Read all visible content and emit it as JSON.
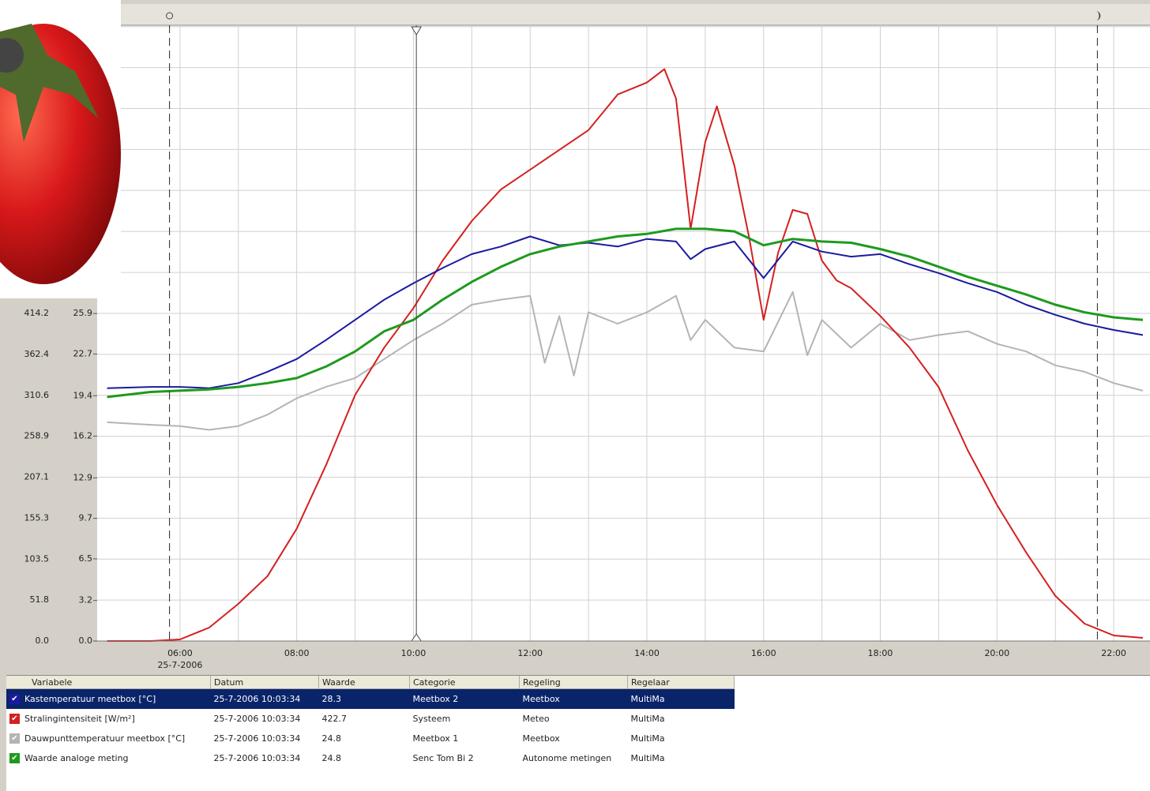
{
  "chart_data": {
    "type": "line",
    "xlim": [
      4.58,
      22.5
    ],
    "xticks": [
      {
        "value": 6,
        "label": "06:00"
      },
      {
        "value": 8,
        "label": "08:00"
      },
      {
        "value": 10,
        "label": "10:00"
      },
      {
        "value": 12,
        "label": "12:00"
      },
      {
        "value": 14,
        "label": "14:00"
      },
      {
        "value": 16,
        "label": "16:00"
      },
      {
        "value": 18,
        "label": "18:00"
      },
      {
        "value": 20,
        "label": "20:00"
      },
      {
        "value": 22,
        "label": "22:00"
      }
    ],
    "xgrid": [
      7,
      9,
      11,
      13,
      15,
      17,
      19,
      21
    ],
    "x_date_label": "25-7-2006",
    "ylim": [
      0,
      778.5
    ],
    "yticks": [
      {
        "value": 0,
        "label": "0.0"
      },
      51.8,
      103.5,
      155.3,
      207.1,
      258.9,
      310.6,
      362.4,
      414.2
    ],
    "ygrid": [
      466.0,
      517.8,
      569.6,
      621.4,
      673.2,
      725.0,
      776.7
    ],
    "y2lim": [
      0,
      48.7
    ],
    "y2ticks": [
      {
        "value": 0,
        "label": "0.0"
      },
      3.2,
      6.5,
      9.7,
      12.9,
      16.2,
      19.4,
      22.7,
      25.9
    ],
    "grid": true,
    "sunrise_x": 5.82,
    "cursor_x": 10.05,
    "sunset_x": 21.72,
    "series": [
      {
        "name": "Kastemperatuur meetbox [°C]",
        "color": "#1a1aa0",
        "axis": "y2",
        "x": [
          4.75,
          5.5,
          6,
          6.5,
          7,
          7.5,
          8,
          8.5,
          9,
          9.5,
          10,
          10.5,
          11,
          11.5,
          12,
          12.5,
          13,
          13.5,
          14,
          14.5,
          14.75,
          15,
          15.5,
          16,
          16.5,
          17,
          17.5,
          18,
          18.5,
          19,
          19.5,
          20,
          20.5,
          21,
          21.5,
          22,
          22.5
        ],
        "values": [
          20.0,
          20.1,
          20.1,
          20.0,
          20.4,
          21.3,
          22.3,
          23.8,
          25.4,
          27.0,
          28.3,
          29.5,
          30.6,
          31.2,
          32.0,
          31.3,
          31.5,
          31.2,
          31.8,
          31.6,
          30.2,
          31.0,
          31.6,
          28.7,
          31.6,
          30.8,
          30.4,
          30.6,
          29.8,
          29.1,
          28.3,
          27.6,
          26.6,
          25.8,
          25.1,
          24.6,
          24.2
        ]
      },
      {
        "name": "Stralingintensiteit [W/m²]",
        "color": "#d42020",
        "axis": "y",
        "x": [
          4.75,
          5.5,
          6,
          6.5,
          7,
          7.5,
          8,
          8.5,
          9,
          9.5,
          10,
          10.5,
          11,
          11.5,
          12,
          12.5,
          13,
          13.5,
          14,
          14.3,
          14.5,
          14.75,
          15,
          15.2,
          15.5,
          15.75,
          16,
          16.25,
          16.5,
          16.75,
          17,
          17.25,
          17.5,
          18,
          18.5,
          19,
          19.5,
          20,
          20.5,
          21,
          21.5,
          22,
          22.5
        ],
        "values": [
          0,
          0,
          2,
          17,
          47,
          82,
          142,
          222,
          311,
          371,
          421,
          481,
          531,
          571,
          596,
          621,
          646,
          691,
          706,
          723,
          686,
          521,
          631,
          676,
          601,
          511,
          406,
          491,
          545,
          540,
          481,
          456,
          446,
          411,
          371,
          321,
          241,
          172,
          112,
          57,
          22,
          7,
          4
        ]
      },
      {
        "name": "Dauwpunttemperatuur meetbox [°C]",
        "color": "#b4b4b4",
        "axis": "y2",
        "x": [
          4.75,
          5.5,
          6,
          6.5,
          7,
          7.5,
          8,
          8.5,
          9,
          9.5,
          10,
          10.5,
          11,
          11.5,
          12,
          12.25,
          12.5,
          12.75,
          13,
          13.5,
          14,
          14.5,
          14.75,
          15,
          15.5,
          16,
          16.5,
          16.75,
          17,
          17.5,
          18,
          18.5,
          19,
          19.5,
          20,
          20.5,
          21,
          21.5,
          22,
          22.5
        ],
        "values": [
          17.3,
          17.1,
          17.0,
          16.7,
          17.0,
          17.9,
          19.2,
          20.1,
          20.8,
          22.3,
          23.8,
          25.1,
          26.6,
          27.0,
          27.3,
          22.0,
          25.7,
          21.0,
          26.0,
          25.1,
          26.0,
          27.3,
          23.8,
          25.4,
          23.2,
          22.9,
          27.6,
          22.6,
          25.4,
          23.2,
          25.1,
          23.8,
          24.2,
          24.5,
          23.5,
          22.9,
          21.8,
          21.3,
          20.4,
          19.8
        ]
      },
      {
        "name": "Waarde analoge meting",
        "color": "#1e9a1e",
        "axis": "y2",
        "x": [
          4.75,
          5.5,
          6,
          6.5,
          7,
          7.5,
          8,
          8.5,
          9,
          9.5,
          10,
          10.5,
          11,
          11.5,
          12,
          12.5,
          13,
          13.5,
          14,
          14.5,
          15,
          15.5,
          16,
          16.5,
          17,
          17.5,
          18,
          18.5,
          19,
          19.5,
          20,
          20.5,
          21,
          21.5,
          22,
          22.5
        ],
        "values": [
          19.3,
          19.7,
          19.8,
          19.9,
          20.1,
          20.4,
          20.8,
          21.7,
          22.9,
          24.5,
          25.4,
          27.0,
          28.4,
          29.6,
          30.6,
          31.2,
          31.6,
          32.0,
          32.2,
          32.6,
          32.6,
          32.4,
          31.3,
          31.8,
          31.6,
          31.5,
          31.0,
          30.4,
          29.6,
          28.8,
          28.1,
          27.4,
          26.6,
          26.0,
          25.6,
          25.4
        ]
      }
    ]
  },
  "table": {
    "header": [
      "Variabele",
      "Datum",
      "Waarde",
      "Categorie",
      "Regeling",
      "Regelaar"
    ],
    "rows": [
      [
        "25-7-2006 10:03:34",
        "28.3",
        "Meetbox 2",
        "Meetbox",
        "MultiMa"
      ],
      [
        "25-7-2006 10:03:34",
        "422.7",
        "Systeem",
        "Meteo",
        "MultiMa"
      ],
      [
        "25-7-2006 10:03:34",
        "24.8",
        "Meetbox 1",
        "Meetbox",
        "MultiMa"
      ],
      [
        "25-7-2006 10:03:34",
        "24.8",
        "Senc Tom Bi 2",
        "Autonome metingen",
        "MultiMa"
      ]
    ]
  }
}
